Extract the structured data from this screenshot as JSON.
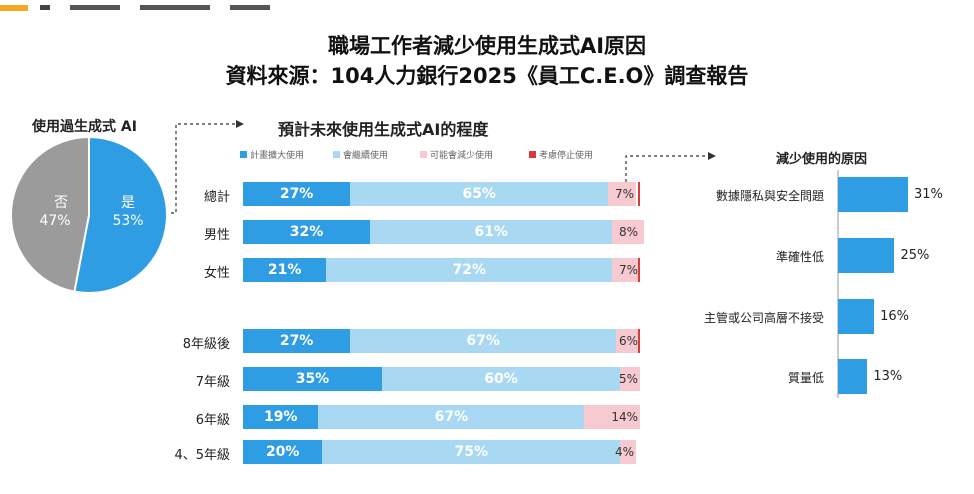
{
  "header": {
    "title_line1": "職場工作者減少使用生成式AI原因",
    "title_line2": "資料來源：104人力銀行2025《員工C.E.O》調查報告"
  },
  "colors": {
    "plan_expand": "#2f9de4",
    "continue": "#a9d8f3",
    "may_reduce": "#f7c9d0",
    "stop": "#d93a3a",
    "pie_yes": "#2f9de4",
    "pie_no": "#9b9b9b",
    "reason": "#2f9de4"
  },
  "chart_data": [
    {
      "type": "pie",
      "title": "使用過生成式 AI",
      "slices": [
        {
          "name": "是",
          "value": 53,
          "label": "53%"
        },
        {
          "name": "否",
          "value": 47,
          "label": "47%"
        }
      ]
    },
    {
      "type": "bar",
      "stacked": true,
      "orientation": "horizontal",
      "title": "預計未來使用生成式AI的程度",
      "legend": [
        "計畫擴大使用",
        "會繼續使用",
        "可能會減少使用",
        "考慮停止使用"
      ],
      "categories": [
        "總計",
        "男性",
        "女性",
        "8年級後",
        "7年級",
        "6年級",
        "4、5年級"
      ],
      "series": [
        {
          "name": "計畫擴大使用",
          "values": [
            27,
            32,
            21,
            27,
            35,
            19,
            20
          ]
        },
        {
          "name": "會繼續使用",
          "values": [
            65,
            61,
            72,
            67,
            60,
            67,
            75
          ]
        },
        {
          "name": "可能會減少使用",
          "values": [
            7,
            8,
            7,
            6,
            5,
            14,
            4
          ]
        },
        {
          "name": "考慮停止使用",
          "values": [
            1,
            0,
            1,
            1,
            0,
            0,
            0
          ]
        }
      ],
      "value_labels": [
        [
          "27%",
          "65%",
          "7%"
        ],
        [
          "32%",
          "61%",
          "8%"
        ],
        [
          "21%",
          "72%",
          "7%"
        ],
        [
          "27%",
          "67%",
          "6%"
        ],
        [
          "35%",
          "60%",
          "5%"
        ],
        [
          "19%",
          "67%",
          "14%"
        ],
        [
          "20%",
          "75%",
          "4%"
        ]
      ],
      "xlim": [
        0,
        100
      ]
    },
    {
      "type": "bar",
      "orientation": "horizontal",
      "title": "減少使用的原因",
      "categories": [
        "數據隱私與安全問題",
        "準確性低",
        "主管或公司高層不接受",
        "質量低"
      ],
      "values": [
        31,
        25,
        16,
        13
      ],
      "value_labels": [
        "31%",
        "25%",
        "16%",
        "13%"
      ]
    }
  ]
}
